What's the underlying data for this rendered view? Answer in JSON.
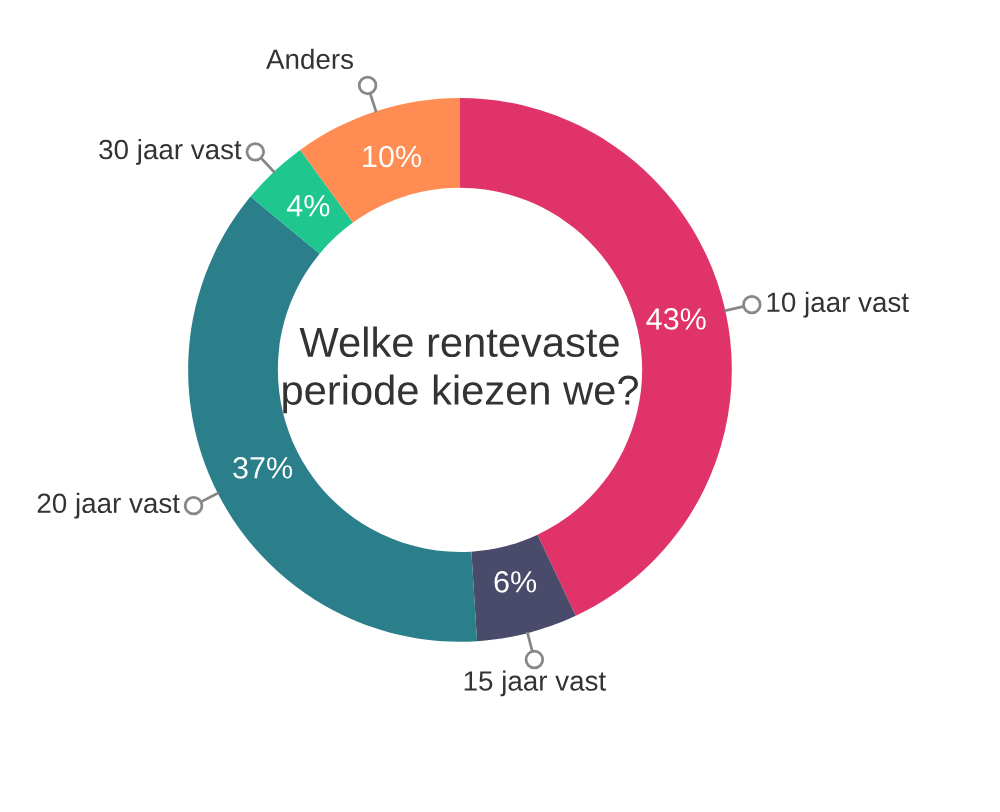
{
  "chart_data": {
    "type": "donut",
    "title": "Welke rentevaste\nperiode kiezen we?",
    "categories": [
      "10 jaar vast",
      "15 jaar vast",
      "20 jaar vast",
      "30 jaar vast",
      "Anders"
    ],
    "values": [
      43,
      6,
      37,
      4,
      10
    ],
    "colors": [
      "#e0336a",
      "#4a4a6a",
      "#2a7f8a",
      "#1fc78f",
      "#ff8c52"
    ],
    "value_labels": [
      "43%",
      "6%",
      "37%",
      "4%",
      "10%"
    ],
    "legend": false
  }
}
